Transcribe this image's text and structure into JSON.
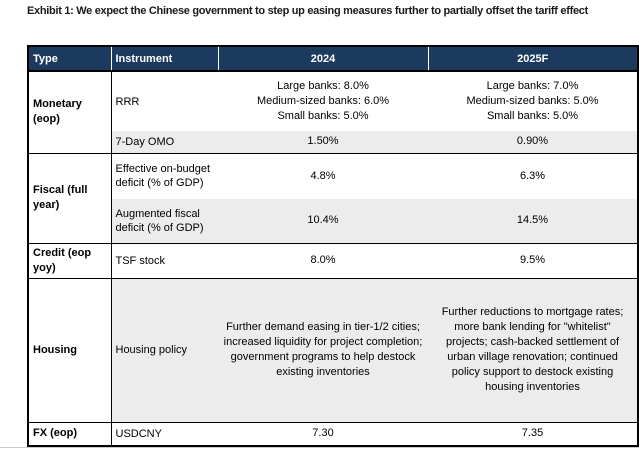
{
  "exhibit": {
    "title": "Exhibit 1: We expect the Chinese government to step up easing measures further to partially offset the tariff effect"
  },
  "colors": {
    "header_bg": "#1b3a5e",
    "row_shade": "#ececec",
    "border": "#000000"
  },
  "table": {
    "headers": {
      "type": "Type",
      "instrument": "Instrument",
      "col2024": "2024",
      "col2025": "2025F"
    },
    "groups": [
      {
        "type": "Monetary (eop)",
        "rows": [
          {
            "instrument": "RRR",
            "y2024": "Large banks: 8.0%\nMedium-sized banks: 6.0%\nSmall banks: 5.0%",
            "y2025": "Large banks: 7.0%\nMedium-sized banks: 5.0%\nSmall banks: 5.0%"
          },
          {
            "instrument": "7-Day OMO",
            "y2024": "1.50%",
            "y2025": "0.90%"
          }
        ]
      },
      {
        "type": "Fiscal (full year)",
        "rows": [
          {
            "instrument": "Effective on-budget deficit (% of GDP)",
            "y2024": "4.8%",
            "y2025": "6.3%"
          },
          {
            "instrument": "Augmented fiscal deficit (% of GDP)",
            "y2024": "10.4%",
            "y2025": "14.5%"
          }
        ]
      },
      {
        "type": "Credit (eop yoy)",
        "rows": [
          {
            "instrument": "TSF stock",
            "y2024": "8.0%",
            "y2025": "9.5%"
          }
        ]
      },
      {
        "type": "Housing",
        "rows": [
          {
            "instrument": "Housing policy",
            "y2024": "Further demand easing in tier-1/2 cities; increased liquidity for project completion; government programs to help destock existing inventories",
            "y2025": "Further reductions to mortgage rates; more bank lending for \"whitelist\" projects; cash-backed settlement of urban village renovation; continued policy support to destock existing housing inventories"
          }
        ]
      },
      {
        "type": "FX (eop)",
        "rows": [
          {
            "instrument": "USDCNY",
            "y2024": "7.30",
            "y2025": "7.35"
          }
        ]
      }
    ]
  }
}
